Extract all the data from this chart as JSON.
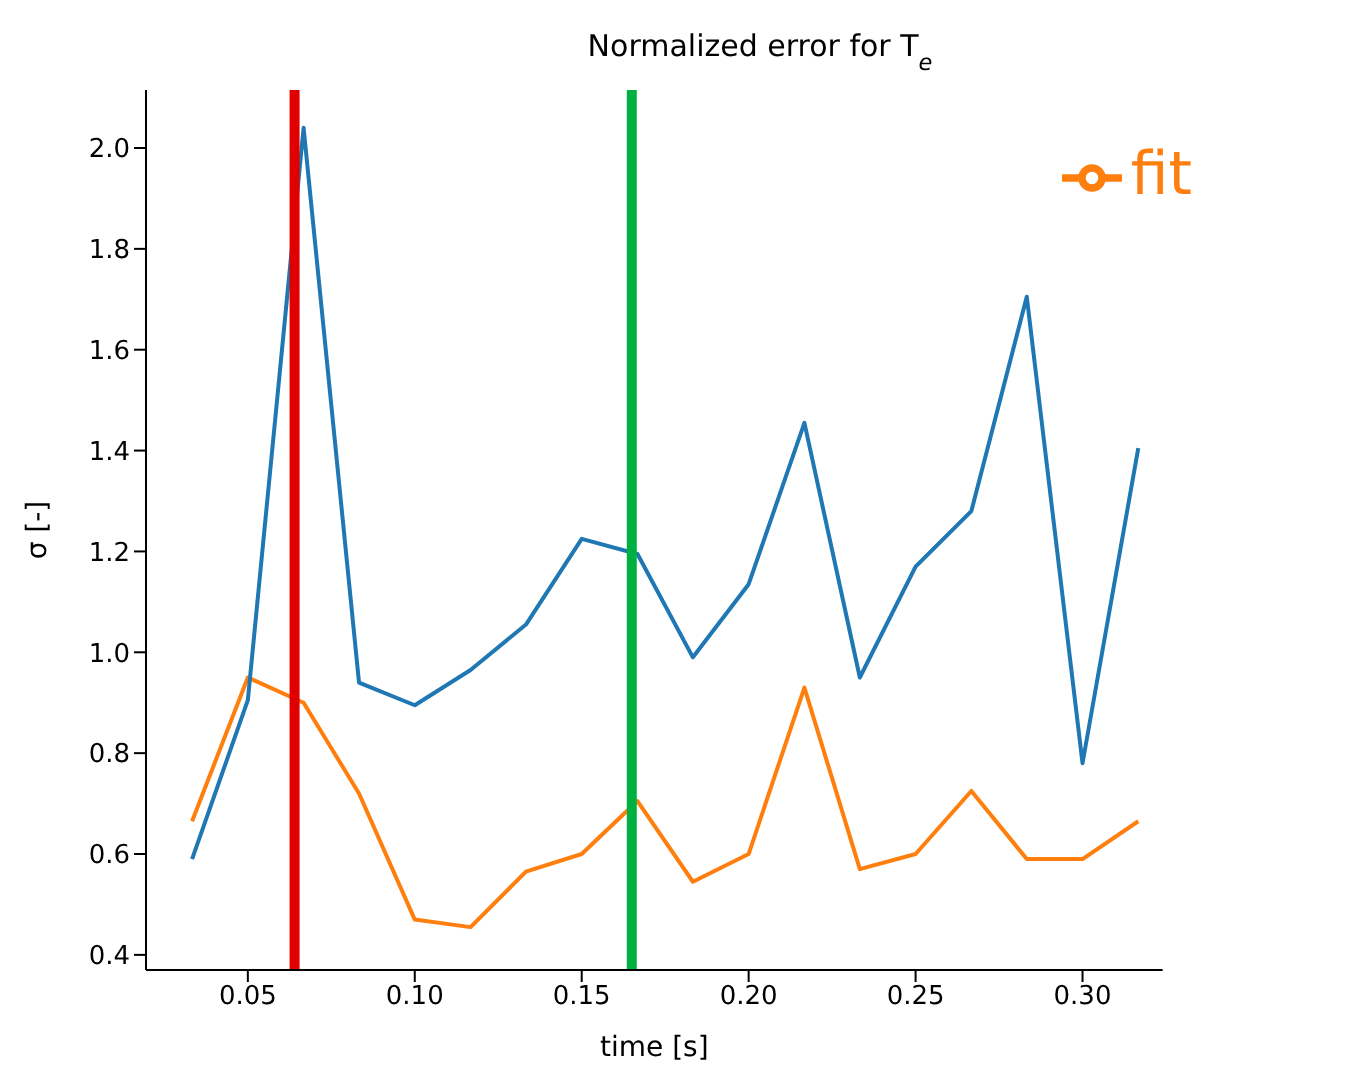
{
  "chart_data": {
    "type": "line",
    "title": "Normalized error for T$_{e}$",
    "xlabel": "time [s]",
    "ylabel": "σ [-]",
    "x": [
      0.0333,
      0.05,
      0.0667,
      0.0833,
      0.1,
      0.1167,
      0.1333,
      0.15,
      0.1667,
      0.1833,
      0.2,
      0.2167,
      0.2333,
      0.25,
      0.2667,
      0.2833,
      0.3,
      0.3167
    ],
    "series": [
      {
        "name": "fit",
        "color": "#ff7f0e",
        "values": [
          0.665,
          0.95,
          0.9,
          0.72,
          0.47,
          0.455,
          0.565,
          0.6,
          0.705,
          0.545,
          0.6,
          0.93,
          0.57,
          0.6,
          0.725,
          0.59,
          0.59,
          0.665
        ]
      },
      {
        "color": "#1f77b4",
        "values": [
          0.59,
          0.905,
          2.04,
          0.94,
          0.895,
          0.965,
          1.055,
          1.225,
          1.195,
          0.99,
          1.135,
          1.455,
          0.95,
          1.17,
          1.28,
          1.705,
          0.78,
          1.405
        ]
      }
    ],
    "xlim": [
      0.0195,
      0.324
    ],
    "ylim": [
      0.37,
      2.115
    ],
    "xticks": [
      {
        "value": 0.05,
        "label": "0.05"
      },
      {
        "value": 0.1,
        "label": "0.10"
      },
      {
        "value": 0.15,
        "label": "0.15"
      },
      {
        "value": 0.2,
        "label": "0.20"
      },
      {
        "value": 0.25,
        "label": "0.25"
      },
      {
        "value": 0.3,
        "label": "0.30"
      }
    ],
    "yticks": [
      {
        "value": 0.4,
        "label": "0.4"
      },
      {
        "value": 0.6,
        "label": "0.6"
      },
      {
        "value": 0.8,
        "label": "0.8"
      },
      {
        "value": 1.0,
        "label": "1.0"
      },
      {
        "value": 1.2,
        "label": "1.2"
      },
      {
        "value": 1.4,
        "label": "1.4"
      },
      {
        "value": 1.6,
        "label": "1.6"
      },
      {
        "value": 1.8,
        "label": "1.8"
      },
      {
        "value": 2.0,
        "label": "2.0"
      }
    ],
    "ref_lines": [
      {
        "axis": "x",
        "value": 0.064,
        "color": "#e00000"
      },
      {
        "axis": "x",
        "value": 0.165,
        "color": "#00b040"
      }
    ],
    "legend": "top right",
    "grid": false,
    "marker": "none",
    "line_style": "solid"
  }
}
